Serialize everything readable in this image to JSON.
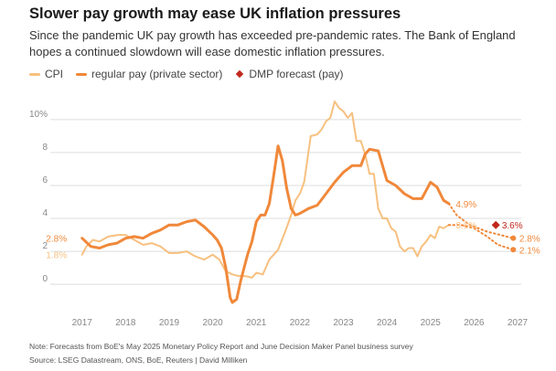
{
  "header": {
    "title": "Slower pay growth may ease UK inflation pressures",
    "subtitle": "Since the pandemic UK pay growth has exceeded pre-pandemic rates. The Bank of England hopes a continued slowdown will ease domestic inflation pressures."
  },
  "footer": {
    "note": "Note: Forecasts from BoE's May 2025 Monetary Policy Report and June Decision Maker Panel business survey",
    "source": "Source: LSEG Datastream, ONS, BoE, Reuters | David Milliken"
  },
  "colors": {
    "cpi": "#f7c07f",
    "pay": "#f0883a",
    "dmp": "#c0281c",
    "grid": "#dddddd",
    "axis_text": "#888888"
  },
  "chart_data": {
    "type": "line",
    "title": "Slower pay growth may ease UK inflation pressures",
    "xlabel": "",
    "ylabel": "",
    "xlim": [
      2016.9,
      2027.0
    ],
    "ylim": [
      -1.6,
      11.6
    ],
    "x_ticks": [
      2017,
      2018,
      2019,
      2020,
      2021,
      2022,
      2023,
      2024,
      2025,
      2026,
      2027
    ],
    "x_tick_labels": [
      "2017",
      "2018",
      "2019",
      "2020",
      "2021",
      "2022",
      "2023",
      "2024",
      "2025",
      "2026",
      "2027"
    ],
    "y_ticks": [
      0,
      2,
      4,
      6,
      8,
      10
    ],
    "y_tick_labels": [
      "0",
      "2",
      "4",
      "6",
      "8",
      "10%"
    ],
    "grid": true,
    "legend_position": "top-left",
    "legend": [
      "CPI",
      "regular pay (private sector)",
      "DMP forecast (pay)"
    ],
    "series": [
      {
        "name": "CPI",
        "key": "cpi",
        "x": [
          2017.0,
          2017.1,
          2017.25,
          2017.4,
          2017.6,
          2017.83,
          2018.0,
          2018.2,
          2018.4,
          2018.6,
          2018.8,
          2019.0,
          2019.2,
          2019.4,
          2019.6,
          2019.8,
          2020.0,
          2020.15,
          2020.3,
          2020.45,
          2020.6,
          2020.75,
          2020.9,
          2021.0,
          2021.15,
          2021.3,
          2021.5,
          2021.65,
          2021.8,
          2021.9,
          2022.0,
          2022.1,
          2022.25,
          2022.4,
          2022.5,
          2022.6,
          2022.7,
          2022.8,
          2022.9,
          2023.0,
          2023.1,
          2023.2,
          2023.3,
          2023.4,
          2023.5,
          2023.6,
          2023.7,
          2023.8,
          2023.9,
          2024.0,
          2024.1,
          2024.2,
          2024.3,
          2024.4,
          2024.5,
          2024.6,
          2024.7,
          2024.8,
          2024.9,
          2025.0,
          2025.1,
          2025.2,
          2025.3,
          2025.42
        ],
        "y": [
          1.8,
          2.3,
          2.7,
          2.6,
          2.9,
          3.0,
          3.0,
          2.7,
          2.4,
          2.5,
          2.3,
          1.9,
          1.9,
          2.0,
          1.7,
          1.5,
          1.8,
          1.5,
          0.8,
          0.6,
          0.5,
          0.5,
          0.4,
          0.7,
          0.6,
          1.5,
          2.1,
          3.1,
          4.2,
          5.1,
          5.5,
          6.2,
          9.0,
          9.1,
          9.4,
          9.9,
          10.1,
          11.1,
          10.7,
          10.5,
          10.1,
          10.4,
          8.7,
          8.7,
          7.9,
          6.7,
          6.7,
          4.6,
          4.0,
          4.0,
          3.4,
          3.2,
          2.3,
          2.0,
          2.2,
          2.2,
          1.7,
          2.3,
          2.6,
          3.0,
          2.8,
          3.5,
          3.4,
          3.6
        ]
      },
      {
        "name": "regular pay (private sector)",
        "key": "pay",
        "x": [
          2017.0,
          2017.2,
          2017.4,
          2017.6,
          2017.8,
          2018.0,
          2018.2,
          2018.4,
          2018.6,
          2018.8,
          2019.0,
          2019.2,
          2019.4,
          2019.6,
          2019.8,
          2020.0,
          2020.1,
          2020.2,
          2020.3,
          2020.4,
          2020.45,
          2020.55,
          2020.65,
          2020.8,
          2020.9,
          2021.0,
          2021.1,
          2021.2,
          2021.3,
          2021.4,
          2021.5,
          2021.6,
          2021.7,
          2021.8,
          2021.9,
          2022.0,
          2022.2,
          2022.4,
          2022.6,
          2022.8,
          2023.0,
          2023.2,
          2023.4,
          2023.5,
          2023.6,
          2023.8,
          2024.0,
          2024.2,
          2024.4,
          2024.6,
          2024.8,
          2025.0,
          2025.15,
          2025.3,
          2025.42
        ],
        "y": [
          2.8,
          2.3,
          2.2,
          2.4,
          2.5,
          2.8,
          2.9,
          2.8,
          3.1,
          3.3,
          3.6,
          3.6,
          3.8,
          3.9,
          3.5,
          3.0,
          2.7,
          2.2,
          1.0,
          -0.8,
          -1.1,
          -0.9,
          0.3,
          1.8,
          2.6,
          3.8,
          4.2,
          4.2,
          4.9,
          6.6,
          8.4,
          7.5,
          5.8,
          4.6,
          4.2,
          4.3,
          4.6,
          4.8,
          5.5,
          6.2,
          6.8,
          7.2,
          7.2,
          7.9,
          8.2,
          8.1,
          6.3,
          6.0,
          5.5,
          5.2,
          5.2,
          6.2,
          5.9,
          5.1,
          4.9
        ]
      },
      {
        "name": "regular pay forecast",
        "key": "pay_forecast",
        "dotted": true,
        "x": [
          2025.42,
          2025.6,
          2025.9,
          2026.3,
          2026.6,
          2026.9
        ],
        "y": [
          4.9,
          4.2,
          3.6,
          3.2,
          3.0,
          2.8
        ]
      },
      {
        "name": "CPI forecast",
        "key": "cpi_forecast",
        "dotted": true,
        "x": [
          2025.42,
          2025.7,
          2026.0,
          2026.3,
          2026.55,
          2026.9
        ],
        "y": [
          3.6,
          3.6,
          3.4,
          2.9,
          2.4,
          2.1
        ]
      },
      {
        "name": "DMP forecast (pay)",
        "key": "dmp",
        "type": "point",
        "x": [
          2026.5
        ],
        "y": [
          3.6
        ]
      }
    ],
    "annotations": [
      {
        "text": "2.8%",
        "x": 2016.65,
        "y": 2.8,
        "color_key": "pay",
        "anchor": "end"
      },
      {
        "text": "1.8%",
        "x": 2016.65,
        "y": 1.8,
        "color_key": "cpi",
        "anchor": "end"
      },
      {
        "text": "4.9%",
        "x": 2025.58,
        "y": 4.9,
        "color_key": "pay",
        "anchor": "start"
      },
      {
        "text": "3.6%",
        "x": 2025.58,
        "y": 3.6,
        "color_key": "cpi",
        "anchor": "start"
      },
      {
        "text": "3.6%",
        "x": 2026.64,
        "y": 3.6,
        "color_key": "dmp",
        "anchor": "start"
      },
      {
        "text": "2.8%",
        "x": 2027.04,
        "y": 2.8,
        "color_key": "pay",
        "anchor": "start"
      },
      {
        "text": "2.1%",
        "x": 2027.04,
        "y": 2.1,
        "color_key": "pay",
        "anchor": "start"
      }
    ]
  }
}
